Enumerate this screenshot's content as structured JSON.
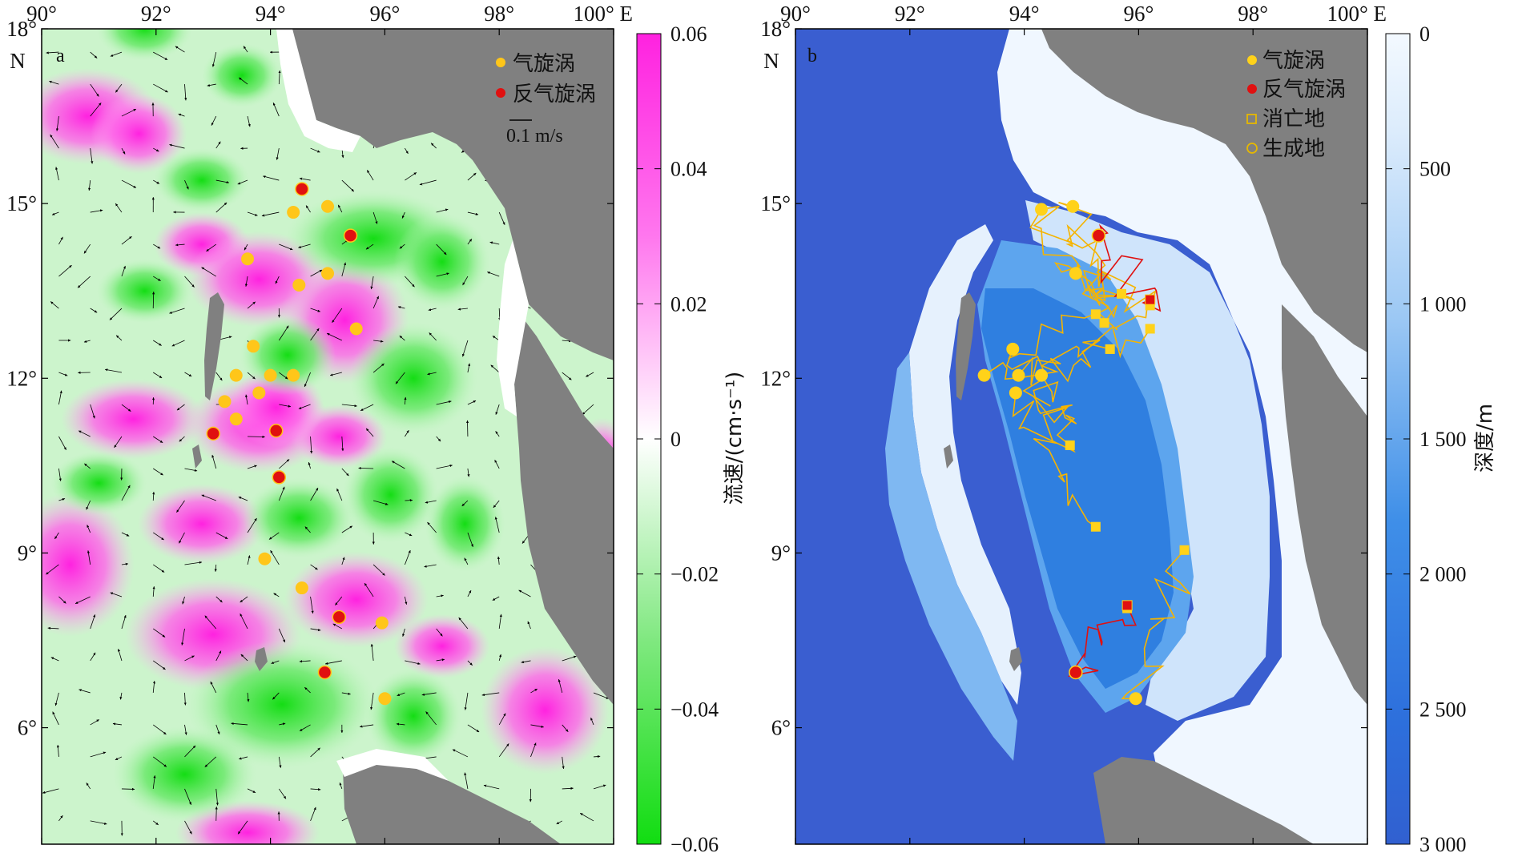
{
  "panel_a": {
    "label": "a",
    "lon_ticks": [
      "90°",
      "92°",
      "94°",
      "96°",
      "98°",
      "100° E"
    ],
    "lat_ticks": [
      "18°",
      "15°",
      "12°",
      "9°",
      "6°"
    ],
    "lat_unit": "N",
    "legend": {
      "cyclone": "气旋涡",
      "anticyclone": "反气旋涡",
      "scale": "0.1 m/s"
    },
    "colorbar": {
      "title": "流速/(cm·s⁻¹)",
      "ticks": [
        "0.06",
        "0.04",
        "0.02",
        "0",
        "−0.02",
        "−0.04",
        "−0.06"
      ],
      "min": -0.06,
      "max": 0.06,
      "colors": {
        "positive": "#ff33e0",
        "negative": "#1fe01f",
        "zero": "#ffffff"
      }
    },
    "cyclones": [
      [
        94.4,
        14.85
      ],
      [
        95,
        14.95
      ],
      [
        93.6,
        14.05
      ],
      [
        94.5,
        13.6
      ],
      [
        95,
        13.8
      ],
      [
        95.5,
        12.85
      ],
      [
        93.7,
        12.55
      ],
      [
        93.4,
        12.05
      ],
      [
        94,
        12.05
      ],
      [
        94.4,
        12.05
      ],
      [
        93.8,
        11.75
      ],
      [
        93.2,
        11.6
      ],
      [
        93.4,
        11.3
      ],
      [
        93.9,
        8.9
      ],
      [
        94.55,
        8.4
      ],
      [
        95.95,
        7.8
      ],
      [
        96,
        6.5
      ]
    ],
    "anticyclones": [
      [
        94.55,
        15.25
      ],
      [
        95.4,
        14.45
      ],
      [
        93,
        11.05
      ],
      [
        94.1,
        11.1
      ],
      [
        94.15,
        10.3
      ],
      [
        95.2,
        7.9
      ],
      [
        94.95,
        6.95
      ]
    ]
  },
  "panel_b": {
    "label": "b",
    "lon_ticks": [
      "90°",
      "92°",
      "94°",
      "96°",
      "98°",
      "100° E"
    ],
    "lat_ticks": [
      "18°",
      "15°",
      "12°",
      "9°",
      "6°"
    ],
    "lat_unit": "N",
    "legend": {
      "cyclone": "气旋涡",
      "anticyclone": "反气旋涡",
      "dissipation": "消亡地",
      "genesis": "生成地"
    },
    "colorbar": {
      "title": "深度/m",
      "ticks": [
        "0",
        "500",
        "1 000",
        "1 500",
        "2 000",
        "2 500",
        "3 000"
      ],
      "min": 0,
      "max": 3000,
      "colors": {
        "shallow": "#f2f8fe",
        "deep": "#2f63d6",
        "land": "#808080"
      }
    },
    "colors": {
      "cyclone_track": "#f5b400",
      "anticyclone_track": "#e01010",
      "cyclone_point": "#ffd21a",
      "anticyclone_point": "#e01010"
    },
    "cyclone_genesis": [
      [
        94.3,
        14.9
      ],
      [
        94.85,
        14.95
      ],
      [
        94.9,
        13.8
      ],
      [
        93.8,
        12.5
      ],
      [
        93.3,
        12.05
      ],
      [
        93.9,
        12.05
      ],
      [
        94.3,
        12.05
      ],
      [
        93.85,
        11.75
      ],
      [
        95.95,
        6.5
      ]
    ],
    "dissipation": [
      [
        95.25,
        13.1
      ],
      [
        95.4,
        12.95
      ],
      [
        95.7,
        13.45
      ],
      [
        96.2,
        13.25
      ],
      [
        96.2,
        12.85
      ],
      [
        95.5,
        12.5
      ],
      [
        94.8,
        10.85
      ],
      [
        95.25,
        9.45
      ],
      [
        96.8,
        9.05
      ],
      [
        95.8,
        8.05
      ]
    ],
    "anticyclone_genesis": [
      [
        95.3,
        14.45
      ],
      [
        94.9,
        6.95
      ]
    ],
    "anticyclone_dissipation": [
      [
        96.2,
        13.35
      ],
      [
        95.8,
        8.1
      ]
    ]
  },
  "map_extent": {
    "lon": [
      90,
      100
    ],
    "lat": [
      4,
      18
    ]
  }
}
